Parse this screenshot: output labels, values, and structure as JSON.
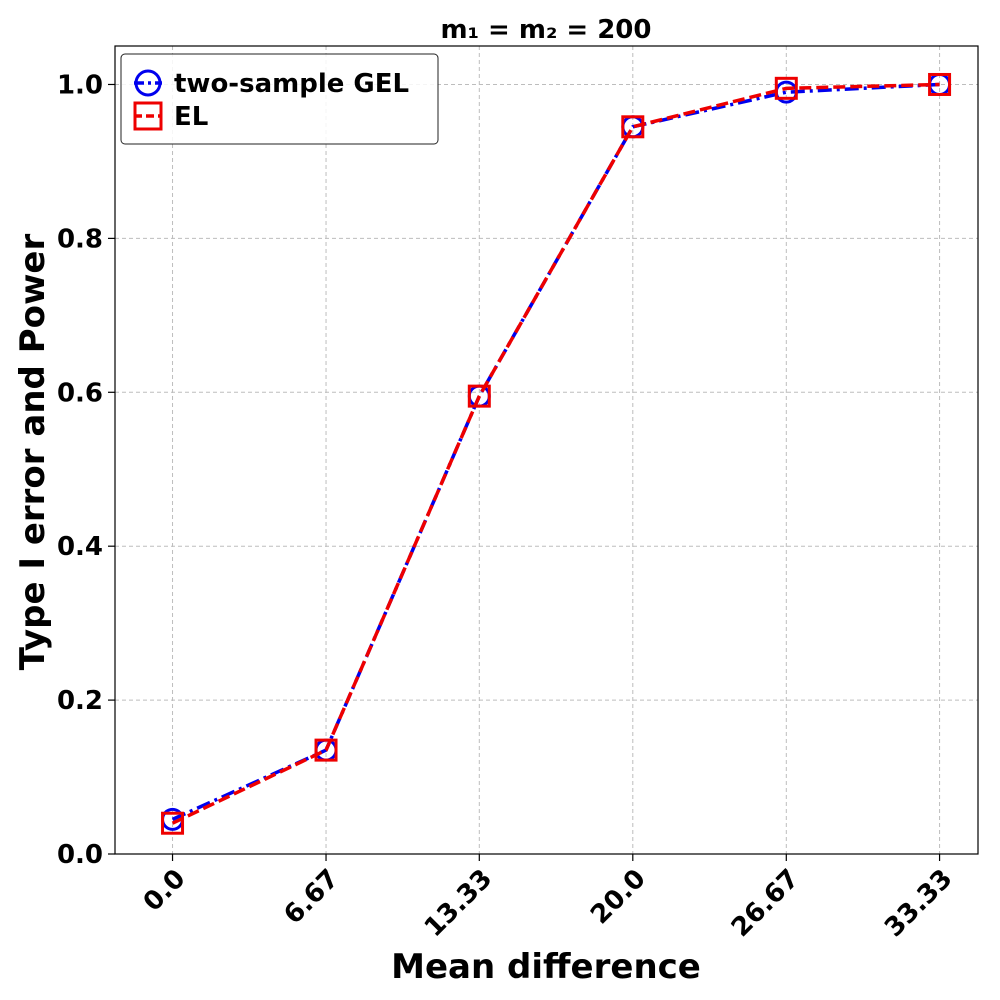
{
  "chart_data": {
    "type": "line",
    "title": "m₁ = m₂ = 200",
    "xlabel": "Mean difference",
    "ylabel": "Type I error and Power",
    "x": [
      0.0,
      6.67,
      13.33,
      20.0,
      26.67,
      33.33
    ],
    "x_tick_labels": [
      "0.0",
      "6.67",
      "13.33",
      "20.0",
      "26.67",
      "33.33"
    ],
    "y_tick_labels": [
      "0.0",
      "0.2",
      "0.4",
      "0.6",
      "0.8",
      "1.0"
    ],
    "y_ticks": [
      0.0,
      0.2,
      0.4,
      0.6,
      0.8,
      1.0
    ],
    "ylim": [
      0.0,
      1.05
    ],
    "xlim": [
      -2.5,
      35.0
    ],
    "grid": true,
    "legend_position": "top-left",
    "series": [
      {
        "name": "two-sample GEL",
        "values": [
          0.045,
          0.135,
          0.595,
          0.945,
          0.99,
          1.0
        ],
        "color": "#0000ee",
        "marker": "circle",
        "line_style": "dash-dot"
      },
      {
        "name": "EL",
        "values": [
          0.04,
          0.135,
          0.595,
          0.945,
          0.995,
          1.0
        ],
        "color": "#ee0000",
        "marker": "square",
        "line_style": "dashed"
      }
    ]
  }
}
